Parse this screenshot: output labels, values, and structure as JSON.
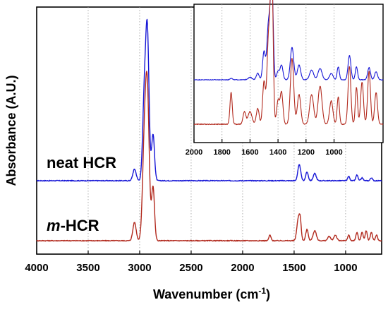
{
  "figure": {
    "ylabel": "Absorbance (A.U.)",
    "xlabel_main": "Wavenumber (cm",
    "xlabel_sup": "-1",
    "xlabel_end": ")"
  },
  "chart_data": [
    {
      "type": "line",
      "title": "",
      "xlabel": "Wavenumber (cm-1)",
      "ylabel": "Absorbance (A.U.)",
      "xlim": [
        4000,
        650
      ],
      "x_reversed": true,
      "x_ticks": [
        4000,
        3500,
        3000,
        2500,
        2000,
        1500,
        1000
      ],
      "y_ticks": [],
      "grid": "vertical dotted",
      "series": [
        {
          "name": "neat HCR",
          "name_prefix": "",
          "color": "#1515d6",
          "baseline": 0.0,
          "peaks": [
            [
              3050,
              0.08,
              16
            ],
            [
              2955,
              0.55,
              16
            ],
            [
              2925,
              1.0,
              16
            ],
            [
              2870,
              0.32,
              14
            ],
            [
              1450,
              0.11,
              14
            ],
            [
              1375,
              0.06,
              12
            ],
            [
              1300,
              0.05,
              14
            ],
            [
              970,
              0.03,
              10
            ],
            [
              890,
              0.04,
              10
            ],
            [
              840,
              0.02,
              10
            ],
            [
              750,
              0.02,
              10
            ]
          ]
        },
        {
          "name": "HCR",
          "name_prefix": "m",
          "color": "#b22a1e",
          "baseline": 0.0,
          "peaks": [
            [
              3050,
              0.13,
              16
            ],
            [
              2955,
              0.62,
              18
            ],
            [
              2925,
              1.0,
              18
            ],
            [
              2870,
              0.38,
              14
            ],
            [
              1735,
              0.04,
              10
            ],
            [
              1460,
              0.15,
              14
            ],
            [
              1440,
              0.12,
              10
            ],
            [
              1375,
              0.08,
              12
            ],
            [
              1300,
              0.07,
              16
            ],
            [
              1160,
              0.03,
              14
            ],
            [
              1100,
              0.04,
              14
            ],
            [
              970,
              0.04,
              10
            ],
            [
              890,
              0.06,
              10
            ],
            [
              840,
              0.06,
              10
            ],
            [
              800,
              0.07,
              10
            ],
            [
              750,
              0.06,
              10
            ],
            [
              700,
              0.04,
              10
            ]
          ]
        }
      ]
    },
    {
      "type": "line",
      "title": "",
      "xlabel": "",
      "ylabel": "",
      "xlim": [
        2000,
        650
      ],
      "x_reversed": true,
      "x_ticks": [
        2000,
        1800,
        1600,
        1400,
        1200,
        1000
      ],
      "grid": "vertical dotted",
      "inset": true,
      "series": [
        {
          "name": "neat HCR",
          "color": "#1515d6",
          "peaks": [
            [
              1735,
              0.02,
              8
            ],
            [
              1600,
              0.03,
              14
            ],
            [
              1545,
              0.08,
              10
            ],
            [
              1500,
              0.35,
              10
            ],
            [
              1470,
              0.6,
              10
            ],
            [
              1450,
              0.8,
              10
            ],
            [
              1440,
              0.62,
              8
            ],
            [
              1400,
              0.1,
              10
            ],
            [
              1375,
              0.18,
              10
            ],
            [
              1300,
              0.4,
              12
            ],
            [
              1250,
              0.18,
              12
            ],
            [
              1160,
              0.12,
              14
            ],
            [
              1100,
              0.14,
              14
            ],
            [
              1020,
              0.08,
              12
            ],
            [
              970,
              0.16,
              8
            ],
            [
              890,
              0.3,
              10
            ],
            [
              840,
              0.16,
              8
            ],
            [
              750,
              0.15,
              10
            ],
            [
              700,
              0.1,
              10
            ]
          ]
        },
        {
          "name": "m-HCR",
          "color": "#b22a1e",
          "peaks": [
            [
              1735,
              0.3,
              8
            ],
            [
              1640,
              0.12,
              10
            ],
            [
              1600,
              0.12,
              14
            ],
            [
              1545,
              0.15,
              10
            ],
            [
              1500,
              0.4,
              10
            ],
            [
              1470,
              0.7,
              10
            ],
            [
              1450,
              1.0,
              10
            ],
            [
              1440,
              0.7,
              8
            ],
            [
              1400,
              0.22,
              10
            ],
            [
              1375,
              0.3,
              10
            ],
            [
              1300,
              0.62,
              12
            ],
            [
              1250,
              0.28,
              12
            ],
            [
              1160,
              0.28,
              14
            ],
            [
              1100,
              0.36,
              14
            ],
            [
              1020,
              0.22,
              12
            ],
            [
              970,
              0.26,
              8
            ],
            [
              890,
              0.55,
              10
            ],
            [
              840,
              0.35,
              8
            ],
            [
              800,
              0.4,
              10
            ],
            [
              750,
              0.5,
              10
            ],
            [
              700,
              0.3,
              10
            ]
          ]
        }
      ]
    }
  ]
}
